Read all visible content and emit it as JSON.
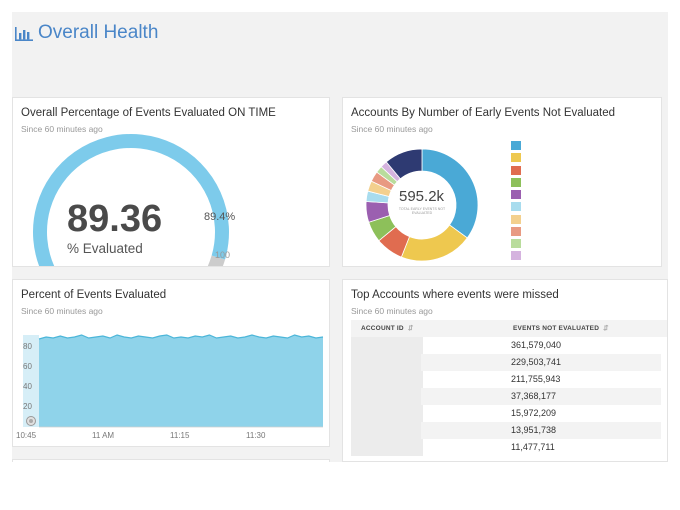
{
  "header": {
    "title": "Overall Health",
    "icon": "bar-chart-icon",
    "accent": "#4a86c8"
  },
  "cards": {
    "gauge": {
      "title": "Overall Percentage of Events Evaluated ON TIME",
      "subtitle": "Since 60 minutes ago",
      "value": "89.36",
      "unit": "% Evaluated",
      "marker": "89.4%",
      "max_label": "100",
      "fill_fraction": 0.8936,
      "fill_color": "#7dcbeb",
      "track_color": "#cccccc"
    },
    "donut": {
      "title": "Accounts By Number of Early Events Not Evaluated",
      "subtitle": "Since 60 minutes ago",
      "center_value": "595.2k",
      "center_caption": "TOTAL EARLY EVENTS NOT EVALUATED",
      "slices": [
        {
          "value": 35,
          "color": "#4aa9d6"
        },
        {
          "value": 21,
          "color": "#eec84f"
        },
        {
          "value": 8,
          "color": "#e06c50"
        },
        {
          "value": 6,
          "color": "#8dc05a"
        },
        {
          "value": 6,
          "color": "#9b5fb0"
        },
        {
          "value": 3,
          "color": "#a8dcee"
        },
        {
          "value": 3,
          "color": "#f3d08e"
        },
        {
          "value": 3,
          "color": "#e89a82"
        },
        {
          "value": 2,
          "color": "#b9dc9c"
        },
        {
          "value": 2,
          "color": "#d5b3df"
        },
        {
          "value": 11,
          "color": "#2e3a72"
        }
      ],
      "legend_colors": [
        "#4aa9d6",
        "#eec84f",
        "#e06c50",
        "#8dc05a",
        "#9b5fb0",
        "#a8dcee",
        "#f3d08e",
        "#e89a82",
        "#b9dc9c",
        "#d5b3df"
      ]
    },
    "area": {
      "title": "Percent of Events Evaluated",
      "subtitle": "Since 60 minutes ago",
      "y_ticks": [
        "80",
        "60",
        "40",
        "20"
      ],
      "x_ticks": [
        "10:45",
        "11 AM",
        "11:15",
        "11:30"
      ],
      "fill_color": "#8fd3ea",
      "line_color": "#4cb6d9"
    },
    "table": {
      "title": "Top Accounts where events were missed",
      "subtitle": "Since 60 minutes ago",
      "columns": [
        "ACCOUNT ID",
        "EVENTS NOT EVALUATED"
      ],
      "rows": [
        {
          "events": "361,579,040"
        },
        {
          "events": "229,503,741"
        },
        {
          "events": "211,755,943"
        },
        {
          "events": "37,368,177"
        },
        {
          "events": "15,972,209"
        },
        {
          "events": "13,951,738"
        },
        {
          "events": "11,477,711"
        }
      ]
    }
  },
  "chart_data": [
    {
      "type": "area",
      "title": "Percent of Events Evaluated",
      "x_ticks": [
        "10:45",
        "11 AM",
        "11:15",
        "11:30"
      ],
      "y_ticks": [
        20,
        40,
        60,
        80
      ],
      "ylim": [
        0,
        100
      ],
      "x_start_minutes_after_10_45": 0,
      "x_end_minutes_after_10_45": 60,
      "values": [
        87,
        89,
        88,
        90,
        88,
        89,
        91,
        88,
        89,
        90,
        88,
        91,
        89,
        88,
        90,
        89,
        88,
        90,
        91,
        88,
        89,
        88,
        90,
        89,
        91,
        88,
        89,
        90,
        88,
        89,
        91,
        89,
        88,
        90,
        89,
        88,
        91,
        89,
        90,
        88,
        89
      ]
    },
    {
      "type": "pie",
      "title": "Accounts By Number of Early Events Not Evaluated",
      "values": [
        35,
        21,
        8,
        6,
        6,
        3,
        3,
        3,
        2,
        2,
        11
      ]
    }
  ]
}
